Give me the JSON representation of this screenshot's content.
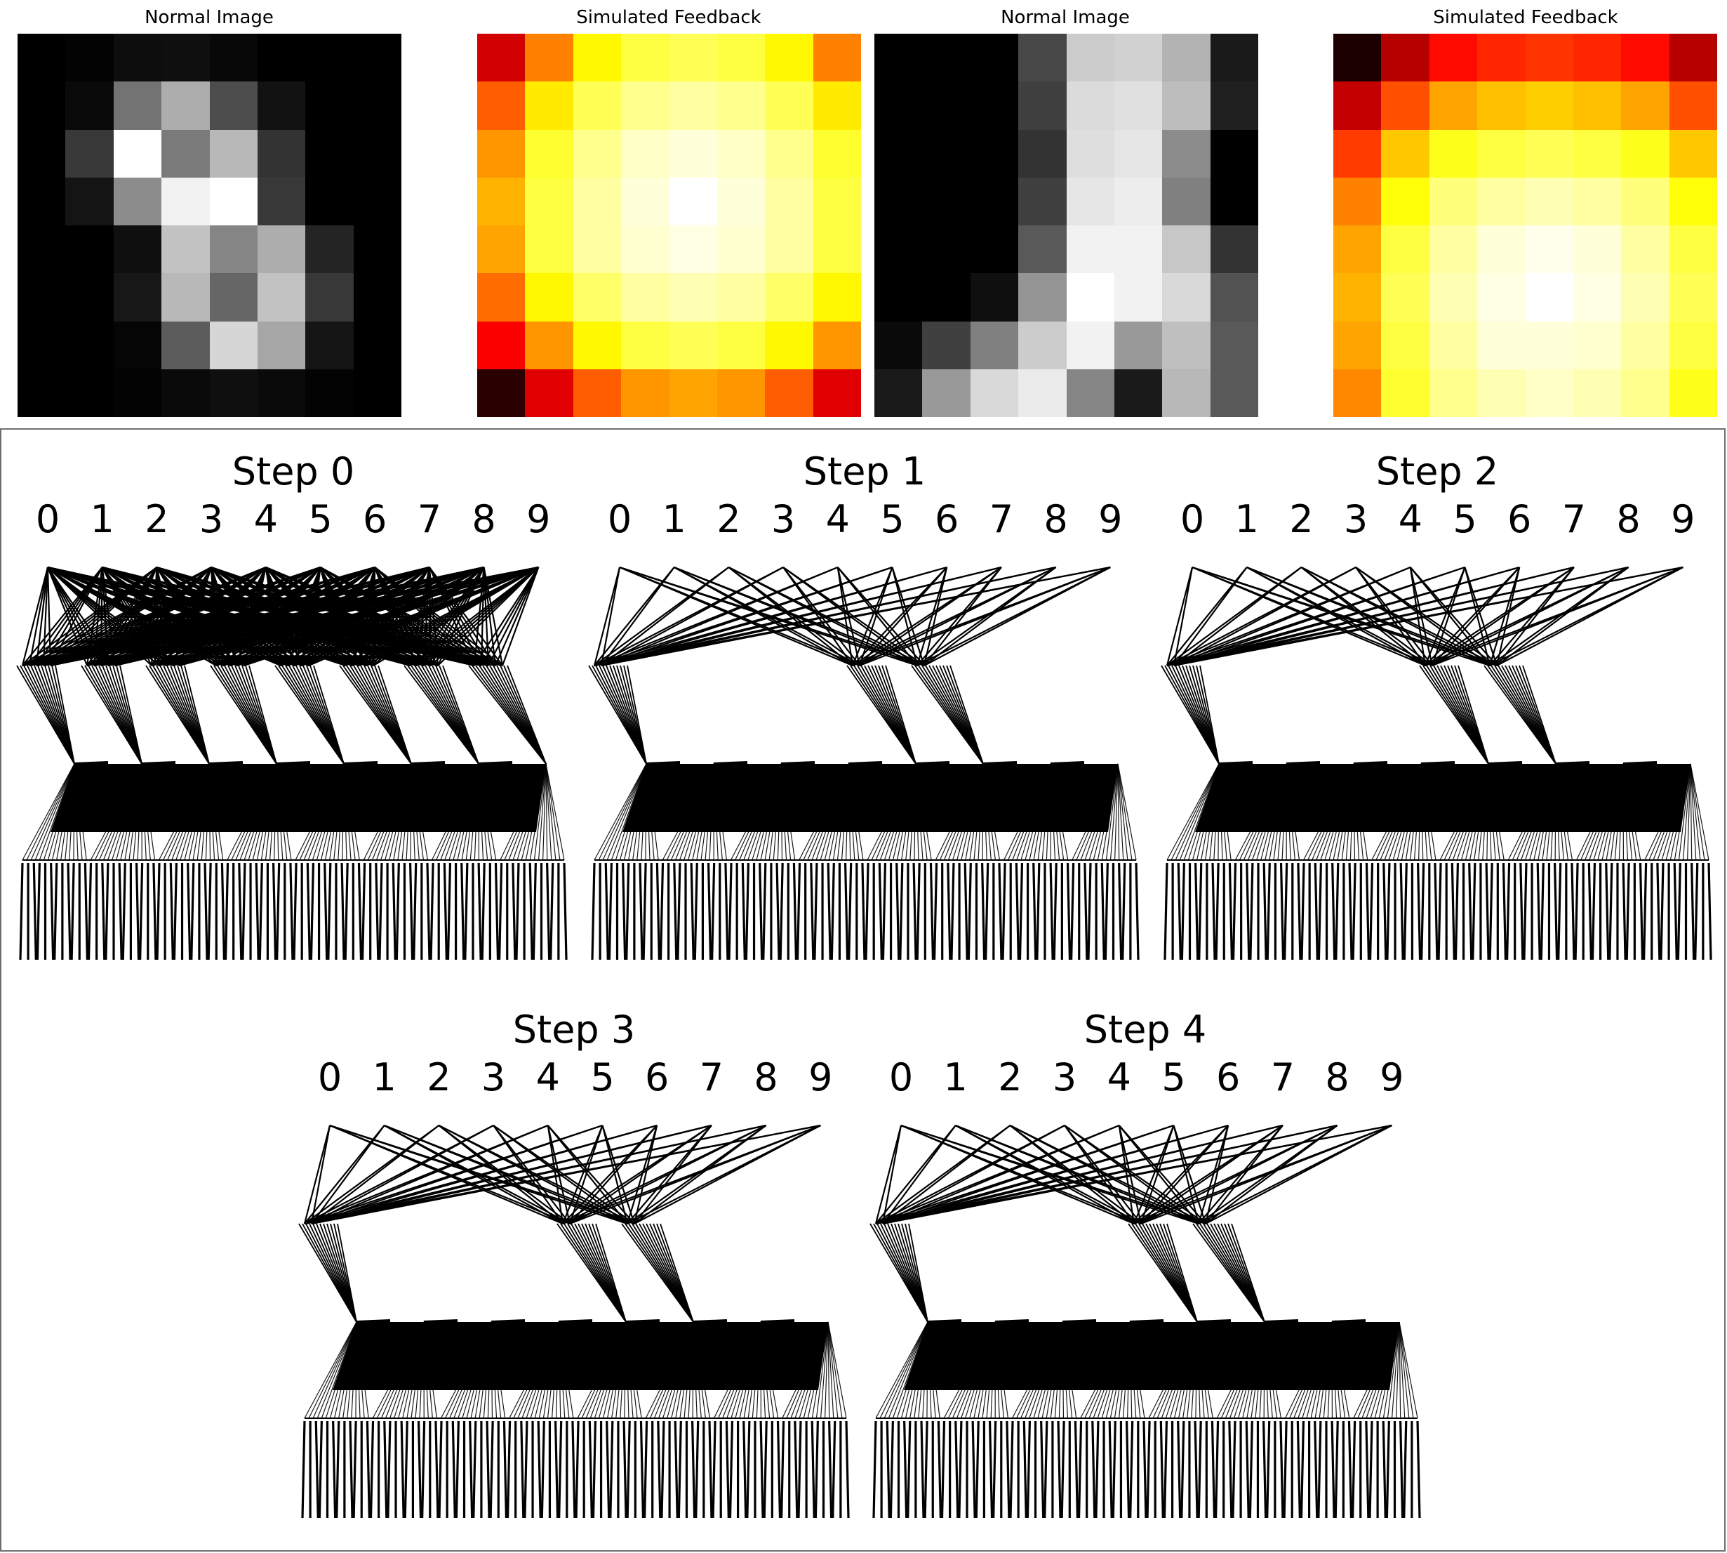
{
  "panels": [
    {
      "title": "Normal Image",
      "kind": "gray"
    },
    {
      "title": "Simulated Feedback",
      "kind": "heat"
    },
    {
      "title": "Normal Image",
      "kind": "gray"
    },
    {
      "title": "Simulated Feedback",
      "kind": "heat"
    }
  ],
  "grids": [
    [
      [
        0.0,
        0.01,
        0.05,
        0.06,
        0.03,
        0.0,
        0.0,
        0.0
      ],
      [
        0.0,
        0.04,
        0.45,
        0.68,
        0.3,
        0.07,
        0.0,
        0.0
      ],
      [
        0.0,
        0.22,
        1.0,
        0.48,
        0.72,
        0.2,
        0.0,
        0.0
      ],
      [
        0.0,
        0.08,
        0.55,
        0.95,
        1.0,
        0.22,
        0.0,
        0.0
      ],
      [
        0.0,
        0.0,
        0.06,
        0.76,
        0.52,
        0.68,
        0.14,
        0.0
      ],
      [
        0.0,
        0.0,
        0.09,
        0.72,
        0.4,
        0.76,
        0.22,
        0.0
      ],
      [
        0.0,
        0.0,
        0.02,
        0.36,
        0.84,
        0.65,
        0.08,
        0.0
      ],
      [
        0.0,
        0.0,
        0.01,
        0.04,
        0.06,
        0.04,
        0.01,
        0.0
      ]
    ],
    [
      [
        0.3,
        0.55,
        0.72,
        0.8,
        0.82,
        0.8,
        0.72,
        0.55
      ],
      [
        0.5,
        0.7,
        0.82,
        0.88,
        0.9,
        0.88,
        0.82,
        0.7
      ],
      [
        0.58,
        0.78,
        0.88,
        0.94,
        0.96,
        0.94,
        0.88,
        0.78
      ],
      [
        0.62,
        0.8,
        0.9,
        0.96,
        1.0,
        0.96,
        0.9,
        0.8
      ],
      [
        0.6,
        0.8,
        0.9,
        0.95,
        0.97,
        0.95,
        0.9,
        0.8
      ],
      [
        0.52,
        0.72,
        0.84,
        0.9,
        0.92,
        0.9,
        0.84,
        0.72
      ],
      [
        0.36,
        0.58,
        0.72,
        0.8,
        0.82,
        0.8,
        0.72,
        0.58
      ],
      [
        0.06,
        0.32,
        0.5,
        0.58,
        0.6,
        0.58,
        0.5,
        0.32
      ]
    ],
    [
      [
        0.0,
        0.0,
        0.0,
        0.28,
        0.8,
        0.82,
        0.7,
        0.1
      ],
      [
        0.0,
        0.0,
        0.0,
        0.25,
        0.86,
        0.88,
        0.74,
        0.12
      ],
      [
        0.0,
        0.0,
        0.0,
        0.2,
        0.87,
        0.9,
        0.55,
        0.0
      ],
      [
        0.0,
        0.0,
        0.0,
        0.25,
        0.9,
        0.93,
        0.5,
        0.0
      ],
      [
        0.0,
        0.0,
        0.0,
        0.35,
        0.95,
        0.95,
        0.78,
        0.2
      ],
      [
        0.0,
        0.0,
        0.06,
        0.58,
        1.0,
        0.95,
        0.85,
        0.32
      ],
      [
        0.04,
        0.25,
        0.5,
        0.8,
        0.95,
        0.6,
        0.75,
        0.35
      ],
      [
        0.1,
        0.6,
        0.85,
        0.92,
        0.52,
        0.1,
        0.72,
        0.35
      ]
    ],
    [
      [
        0.04,
        0.26,
        0.38,
        0.42,
        0.44,
        0.42,
        0.38,
        0.26
      ],
      [
        0.28,
        0.48,
        0.6,
        0.64,
        0.66,
        0.64,
        0.6,
        0.48
      ],
      [
        0.45,
        0.65,
        0.76,
        0.8,
        0.82,
        0.8,
        0.76,
        0.65
      ],
      [
        0.55,
        0.74,
        0.86,
        0.9,
        0.92,
        0.9,
        0.86,
        0.74
      ],
      [
        0.6,
        0.8,
        0.9,
        0.96,
        0.98,
        0.96,
        0.9,
        0.8
      ],
      [
        0.62,
        0.82,
        0.92,
        0.97,
        1.0,
        0.97,
        0.92,
        0.82
      ],
      [
        0.6,
        0.8,
        0.9,
        0.96,
        0.96,
        0.95,
        0.9,
        0.8
      ],
      [
        0.56,
        0.78,
        0.88,
        0.92,
        0.94,
        0.92,
        0.88,
        0.76
      ]
    ]
  ],
  "steps": [
    {
      "title": "Step 0",
      "active_hidden": [
        0,
        1,
        2,
        3,
        4,
        5,
        6,
        7
      ],
      "fanout": 5
    },
    {
      "title": "Step 1",
      "active_hidden": [
        0,
        4,
        5
      ],
      "fanout": 2
    },
    {
      "title": "Step 2",
      "active_hidden": [
        0,
        4,
        5
      ],
      "fanout": 2
    },
    {
      "title": "Step 3",
      "active_hidden": [
        0,
        4,
        5
      ],
      "fanout": 2
    },
    {
      "title": "Step 4",
      "active_hidden": [
        0,
        4,
        5
      ],
      "fanout": 2
    }
  ],
  "digits": [
    "0",
    "1",
    "2",
    "3",
    "4",
    "5",
    "6",
    "7",
    "8",
    "9"
  ]
}
